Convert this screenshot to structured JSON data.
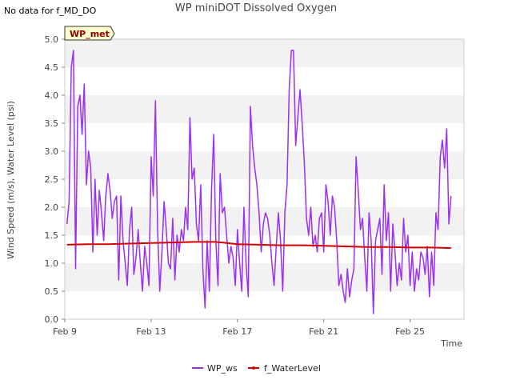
{
  "no_data_note": "No data for f_MD_DO",
  "chart_data": {
    "type": "line",
    "title": "WP miniDOT Dissolved Oxygen",
    "xlabel": "Time",
    "ylabel": "Wind Speed (m/s), Water Level (psi)",
    "badge": "WP_met",
    "ylim": [
      0.0,
      5.0
    ],
    "y_ticks": [
      "0.0",
      "0.5",
      "1.0",
      "1.5",
      "2.0",
      "2.5",
      "3.0",
      "3.5",
      "4.0",
      "4.5",
      "5.0"
    ],
    "x_range_days": [
      9.0,
      27.5
    ],
    "x_ticks": [
      {
        "day": 9,
        "label": "Feb 9"
      },
      {
        "day": 13,
        "label": "Feb 13"
      },
      {
        "day": 17,
        "label": "Feb 17"
      },
      {
        "day": 21,
        "label": "Feb 21"
      },
      {
        "day": 25,
        "label": "Feb 25"
      }
    ],
    "grid": "horizontal bands",
    "legend_position": "bottom",
    "series": [
      {
        "name": "WP_ws",
        "color": "#9b30f0",
        "points": [
          [
            9.1,
            1.7
          ],
          [
            9.2,
            2.1
          ],
          [
            9.3,
            4.5
          ],
          [
            9.4,
            4.8
          ],
          [
            9.5,
            0.9
          ],
          [
            9.6,
            3.8
          ],
          [
            9.7,
            4.0
          ],
          [
            9.8,
            3.3
          ],
          [
            9.9,
            4.2
          ],
          [
            10.0,
            2.4
          ],
          [
            10.1,
            3.0
          ],
          [
            10.2,
            2.7
          ],
          [
            10.3,
            1.2
          ],
          [
            10.4,
            2.5
          ],
          [
            10.5,
            1.5
          ],
          [
            10.6,
            2.3
          ],
          [
            10.7,
            1.9
          ],
          [
            10.8,
            1.4
          ],
          [
            10.9,
            2.2
          ],
          [
            11.0,
            2.6
          ],
          [
            11.1,
            2.3
          ],
          [
            11.2,
            1.8
          ],
          [
            11.3,
            2.1
          ],
          [
            11.4,
            2.2
          ],
          [
            11.5,
            0.7
          ],
          [
            11.6,
            2.2
          ],
          [
            11.7,
            1.4
          ],
          [
            11.8,
            1.0
          ],
          [
            11.9,
            0.6
          ],
          [
            12.0,
            1.6
          ],
          [
            12.1,
            2.0
          ],
          [
            12.2,
            0.8
          ],
          [
            12.3,
            1.1
          ],
          [
            12.4,
            1.6
          ],
          [
            12.5,
            1.0
          ],
          [
            12.6,
            0.5
          ],
          [
            12.7,
            1.3
          ],
          [
            12.8,
            1.0
          ],
          [
            12.9,
            0.6
          ],
          [
            13.0,
            2.9
          ],
          [
            13.1,
            2.2
          ],
          [
            13.2,
            3.9
          ],
          [
            13.3,
            1.6
          ],
          [
            13.4,
            0.5
          ],
          [
            13.5,
            1.2
          ],
          [
            13.6,
            2.1
          ],
          [
            13.7,
            1.6
          ],
          [
            13.8,
            1.0
          ],
          [
            13.9,
            0.9
          ],
          [
            14.0,
            1.8
          ],
          [
            14.1,
            0.7
          ],
          [
            14.2,
            1.5
          ],
          [
            14.3,
            1.2
          ],
          [
            14.4,
            1.6
          ],
          [
            14.5,
            1.4
          ],
          [
            14.6,
            2.0
          ],
          [
            14.7,
            1.6
          ],
          [
            14.8,
            3.6
          ],
          [
            14.9,
            2.5
          ],
          [
            15.0,
            2.7
          ],
          [
            15.1,
            1.7
          ],
          [
            15.2,
            1.4
          ],
          [
            15.3,
            2.4
          ],
          [
            15.4,
            0.9
          ],
          [
            15.5,
            0.2
          ],
          [
            15.6,
            1.4
          ],
          [
            15.7,
            0.5
          ],
          [
            15.8,
            2.3
          ],
          [
            15.9,
            3.3
          ],
          [
            16.0,
            1.4
          ],
          [
            16.1,
            0.6
          ],
          [
            16.2,
            2.6
          ],
          [
            16.3,
            1.9
          ],
          [
            16.4,
            2.0
          ],
          [
            16.5,
            1.5
          ],
          [
            16.6,
            1.0
          ],
          [
            16.7,
            1.3
          ],
          [
            16.8,
            1.1
          ],
          [
            16.9,
            0.6
          ],
          [
            17.0,
            1.6
          ],
          [
            17.1,
            1.0
          ],
          [
            17.2,
            0.5
          ],
          [
            17.3,
            2.0
          ],
          [
            17.4,
            1.0
          ],
          [
            17.5,
            0.4
          ],
          [
            17.6,
            3.8
          ],
          [
            17.7,
            3.1
          ],
          [
            17.8,
            2.7
          ],
          [
            17.9,
            2.4
          ],
          [
            18.0,
            1.9
          ],
          [
            18.1,
            1.2
          ],
          [
            18.2,
            1.7
          ],
          [
            18.3,
            1.9
          ],
          [
            18.4,
            1.8
          ],
          [
            18.5,
            1.5
          ],
          [
            18.6,
            1.0
          ],
          [
            18.7,
            0.6
          ],
          [
            18.8,
            1.3
          ],
          [
            18.9,
            1.9
          ],
          [
            19.0,
            1.4
          ],
          [
            19.1,
            0.5
          ],
          [
            19.2,
            1.9
          ],
          [
            19.3,
            2.4
          ],
          [
            19.4,
            4.1
          ],
          [
            19.5,
            4.8
          ],
          [
            19.6,
            4.8
          ],
          [
            19.7,
            3.1
          ],
          [
            19.8,
            3.6
          ],
          [
            19.9,
            4.1
          ],
          [
            20.0,
            3.5
          ],
          [
            20.1,
            2.8
          ],
          [
            20.2,
            1.8
          ],
          [
            20.3,
            1.5
          ],
          [
            20.4,
            2.0
          ],
          [
            20.5,
            1.3
          ],
          [
            20.6,
            1.5
          ],
          [
            20.7,
            1.2
          ],
          [
            20.8,
            1.8
          ],
          [
            20.9,
            1.9
          ],
          [
            21.0,
            1.2
          ],
          [
            21.1,
            2.4
          ],
          [
            21.2,
            2.1
          ],
          [
            21.3,
            1.5
          ],
          [
            21.4,
            2.2
          ],
          [
            21.5,
            2.0
          ],
          [
            21.6,
            1.4
          ],
          [
            21.7,
            0.6
          ],
          [
            21.8,
            0.8
          ],
          [
            21.9,
            0.5
          ],
          [
            22.0,
            0.3
          ],
          [
            22.1,
            0.9
          ],
          [
            22.2,
            0.4
          ],
          [
            22.3,
            0.7
          ],
          [
            22.4,
            0.9
          ],
          [
            22.5,
            2.9
          ],
          [
            22.6,
            2.3
          ],
          [
            22.7,
            1.6
          ],
          [
            22.8,
            1.8
          ],
          [
            22.9,
            1.1
          ],
          [
            23.0,
            0.5
          ],
          [
            23.1,
            1.9
          ],
          [
            23.2,
            1.4
          ],
          [
            23.3,
            0.1
          ],
          [
            23.4,
            1.4
          ],
          [
            23.5,
            1.6
          ],
          [
            23.6,
            1.8
          ],
          [
            23.7,
            0.8
          ],
          [
            23.8,
            2.4
          ],
          [
            23.9,
            1.4
          ],
          [
            24.0,
            1.9
          ],
          [
            24.1,
            0.5
          ],
          [
            24.2,
            1.7
          ],
          [
            24.3,
            1.2
          ],
          [
            24.4,
            0.6
          ],
          [
            24.5,
            1.0
          ],
          [
            24.6,
            0.7
          ],
          [
            24.7,
            1.8
          ],
          [
            24.8,
            1.2
          ],
          [
            24.9,
            1.5
          ],
          [
            25.0,
            0.6
          ],
          [
            25.1,
            1.2
          ],
          [
            25.2,
            0.5
          ],
          [
            25.3,
            0.9
          ],
          [
            25.4,
            0.7
          ],
          [
            25.5,
            1.2
          ],
          [
            25.6,
            1.1
          ],
          [
            25.7,
            0.8
          ],
          [
            25.8,
            1.3
          ],
          [
            25.9,
            0.4
          ],
          [
            26.0,
            1.2
          ],
          [
            26.1,
            0.6
          ],
          [
            26.2,
            1.9
          ],
          [
            26.3,
            1.6
          ],
          [
            26.4,
            2.9
          ],
          [
            26.5,
            3.2
          ],
          [
            26.6,
            2.7
          ],
          [
            26.7,
            3.4
          ],
          [
            26.8,
            1.7
          ],
          [
            26.9,
            2.2
          ]
        ]
      },
      {
        "name": "f_WaterLevel",
        "color": "#d40000",
        "points": [
          [
            9.1,
            1.33
          ],
          [
            10.0,
            1.34
          ],
          [
            11.0,
            1.34
          ],
          [
            12.0,
            1.35
          ],
          [
            13.0,
            1.36
          ],
          [
            14.0,
            1.37
          ],
          [
            15.0,
            1.38
          ],
          [
            16.0,
            1.38
          ],
          [
            16.5,
            1.36
          ],
          [
            17.0,
            1.34
          ],
          [
            18.0,
            1.33
          ],
          [
            19.0,
            1.32
          ],
          [
            20.0,
            1.32
          ],
          [
            21.0,
            1.31
          ],
          [
            22.0,
            1.3
          ],
          [
            23.0,
            1.29
          ],
          [
            24.0,
            1.29
          ],
          [
            25.0,
            1.28
          ],
          [
            26.0,
            1.28
          ],
          [
            26.9,
            1.27
          ]
        ]
      }
    ]
  }
}
